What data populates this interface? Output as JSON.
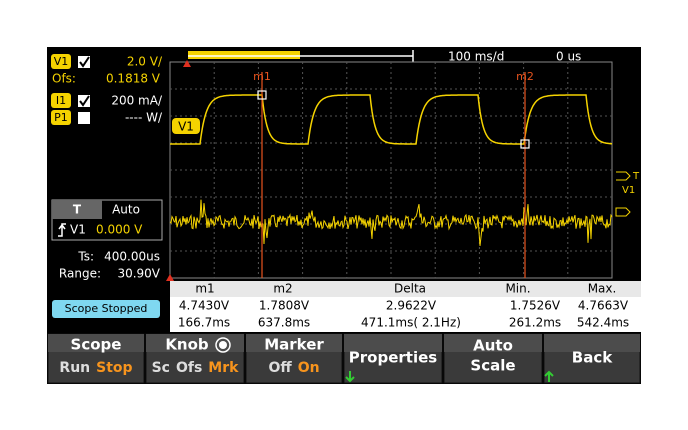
{
  "top_bar": {
    "timebase": "100 ms/d",
    "delay": "0 us"
  },
  "channels": [
    {
      "badge": "V1",
      "checked": true,
      "scale": "2.0 V/"
    },
    {
      "badge": "I1",
      "checked": true,
      "scale": "200 mA/"
    },
    {
      "badge": "P1",
      "checked": false,
      "scale": "---- W/"
    }
  ],
  "offset": {
    "label": "Ofs:",
    "value": "0.1818 V"
  },
  "trigger": {
    "title": "T",
    "mode": "Auto",
    "source": "V1",
    "level": "0.000 V"
  },
  "sampling": {
    "ts_label": "Ts:",
    "ts": "400.00us",
    "range_label": "Range:",
    "range": "30.90V"
  },
  "plot": {
    "trace_label": "V1",
    "markers": [
      "m1",
      "m2"
    ],
    "right_markers": [
      "T",
      "V1"
    ]
  },
  "status": "Scope Stopped",
  "measurements": {
    "headers": [
      "m1",
      "m2",
      "Delta",
      "Min.",
      "Max."
    ],
    "rows": [
      [
        "4.7430V",
        "1.7808V",
        "2.9622V",
        "1.7526V",
        "4.7663V"
      ],
      [
        "166.7ms",
        "637.8ms",
        "471.1ms( 2.1Hz)",
        "261.2ms",
        "542.4ms"
      ]
    ]
  },
  "softkeys": [
    {
      "title_lines": [
        "Scope"
      ],
      "options": [
        "Run",
        "Stop"
      ],
      "active_option": 1
    },
    {
      "title_lines": [
        "Knob"
      ],
      "options": [
        "Sc",
        "Ofs",
        "Mrk"
      ],
      "active_option": 2
    },
    {
      "title_lines": [
        "Marker"
      ],
      "options": [
        "Off",
        "On"
      ],
      "active_option": 1
    },
    {
      "title_lines": [
        "Properties"
      ]
    },
    {
      "title_lines": [
        "Auto",
        "Scale"
      ]
    },
    {
      "title_lines": [
        "Back"
      ]
    }
  ]
}
